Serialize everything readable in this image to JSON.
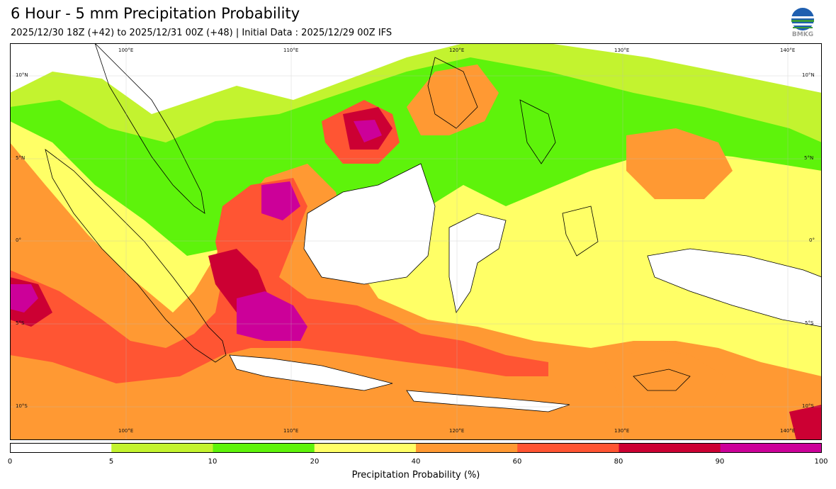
{
  "title": "6 Hour - 5 mm Precipitation Probability",
  "subtitle": "2025/12/30 18Z (+42) to 2025/12/31 00Z (+48) | Initial Data : 2025/12/29 00Z IFS",
  "logo": {
    "text": "BMKG",
    "icon": "bmkg-logo-icon"
  },
  "map": {
    "lon_labels_top": [
      "100°E",
      "110°E",
      "120°E",
      "130°E",
      "140°E"
    ],
    "lon_labels_bottom": [
      "100°E",
      "110°E",
      "120°E",
      "130°E",
      "140°E"
    ],
    "lat_labels_left": [
      "10°N",
      "5°N",
      "0°",
      "5°S",
      "10°S"
    ],
    "lat_labels_right": [
      "10°N",
      "5°N",
      "0°",
      "5°S",
      "10°S"
    ]
  },
  "colorbar": {
    "ticks": [
      "0",
      "5",
      "10",
      "20",
      "40",
      "60",
      "80",
      "90",
      "100"
    ],
    "colors": [
      "#ffffff",
      "#c3f32f",
      "#5ef30b",
      "#ffff66",
      "#ff9933",
      "#ff5533",
      "#cc0033",
      "#cc0099"
    ],
    "label": "Precipitation Probability (%)"
  },
  "palette": {
    "p5": "#c3f32f",
    "p10": "#5ef30b",
    "p20": "#ffff66",
    "p40": "#ff9933",
    "p60": "#ff5533",
    "p80": "#cc0033",
    "p90": "#cc0099"
  }
}
